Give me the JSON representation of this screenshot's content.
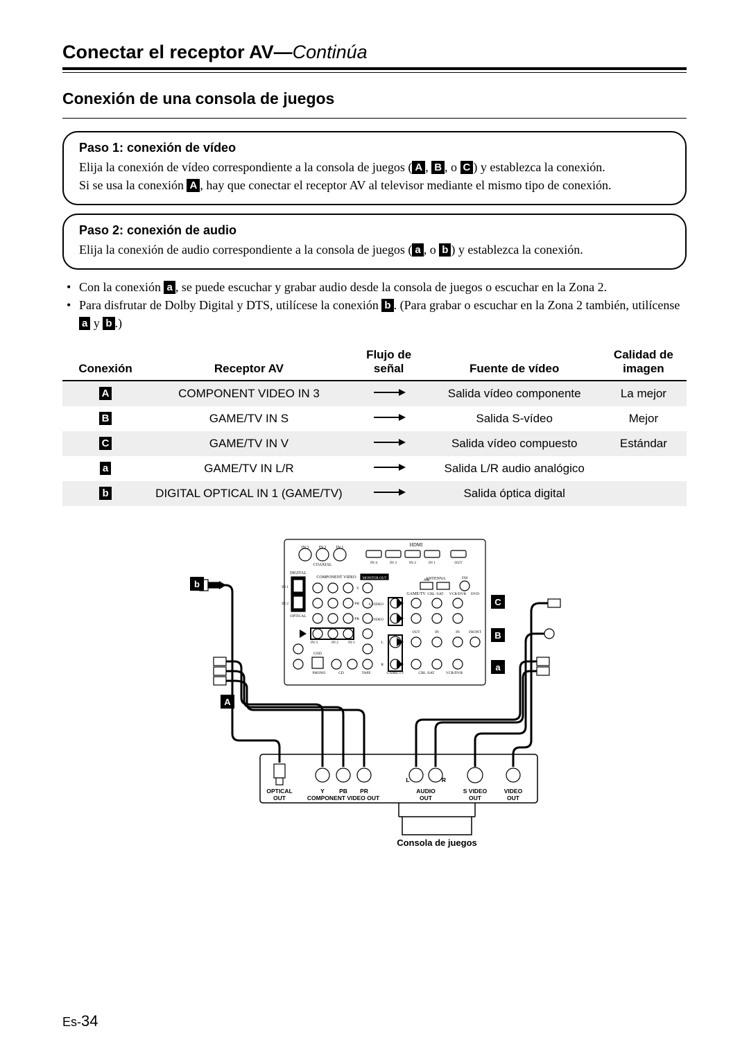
{
  "header": {
    "title_main": "Conectar el receptor AV",
    "title_sep": "—",
    "title_cont": "Continúa"
  },
  "section": {
    "title": "Conexión de una consola de juegos"
  },
  "step1": {
    "title": "Paso 1: conexión de vídeo",
    "line1_a": "Elija la conexión de vídeo correspondiente a la consola de juegos (",
    "line1_b": ", ",
    "line1_c": ", o ",
    "line1_d": ") y establezca la conexión.",
    "line2_a": "Si se usa la conexión ",
    "line2_b": ", hay que conectar el receptor AV al televisor mediante el mismo tipo de conexión.",
    "badges": {
      "A": "A",
      "B": "B",
      "C": "C"
    }
  },
  "step2": {
    "title": "Paso 2: conexión de audio",
    "line1_a": "Elija la conexión de audio correspondiente a la consola de juegos (",
    "line1_b": ", o ",
    "line1_c": ") y establezca la conexión.",
    "badges": {
      "a": "a",
      "b": "b"
    }
  },
  "bullets": {
    "b1_a": "Con la conexión ",
    "b1_b": ", se puede escuchar y grabar audio desde la consola de juegos o escuchar en la Zona 2.",
    "b2_a": "Para disfrutar de Dolby Digital y DTS, utilícese la conexión ",
    "b2_b": ". (Para grabar o escuchar en la Zona 2 también, utilícense ",
    "b2_c": " y ",
    "b2_d": ".)",
    "badges": {
      "a": "a",
      "b": "b"
    }
  },
  "table": {
    "headers": {
      "conn": "Conexión",
      "recv": "Receptor AV",
      "flow_l1": "Flujo de",
      "flow_l2": "señal",
      "src": "Fuente de vídeo",
      "qual_l1": "Calidad de",
      "qual_l2": "imagen"
    },
    "rows": [
      {
        "badge": "A",
        "shade": true,
        "recv": "COMPONENT VIDEO IN 3",
        "src": "Salida vídeo componente",
        "qual": "La mejor"
      },
      {
        "badge": "B",
        "shade": false,
        "recv": "GAME/TV IN S",
        "src": "Salida S-vídeo",
        "qual": "Mejor"
      },
      {
        "badge": "C",
        "shade": true,
        "recv": "GAME/TV IN V",
        "src": "Salida vídeo compuesto",
        "qual": "Estándar"
      },
      {
        "badge": "a",
        "shade": false,
        "recv": "GAME/TV IN L/R",
        "src": "Salida L/R audio analógico",
        "qual": ""
      },
      {
        "badge": "b",
        "shade": true,
        "recv": "DIGITAL OPTICAL IN 1 (GAME/TV)",
        "src": "Salida óptica digital",
        "qual": ""
      }
    ]
  },
  "diagram": {
    "badges": {
      "A": "A",
      "B": "B",
      "C": "C",
      "a": "a",
      "b": "b"
    },
    "labels": {
      "optical_out_l1": "OPTICAL",
      "optical_out_l2": "OUT",
      "comp_out": "COMPONENT VIDEO OUT",
      "y": "Y",
      "pb": "PB",
      "pr": "PR",
      "audio_out_l1": "AUDIO",
      "audio_out_l2": "OUT",
      "L": "L",
      "R": "R",
      "svideo_out_l1": "S VIDEO",
      "svideo_out_l2": "OUT",
      "video_out_l1": "VIDEO",
      "video_out_l2": "OUT",
      "console": "Consola de juegos"
    },
    "panel_text": {
      "hdmi": "HDMI",
      "in1": "IN 1",
      "in2": "IN 2",
      "in3": "IN 3",
      "in4": "IN 4",
      "out": "OUT",
      "digital": "DIGITAL",
      "optical": "OPTICAL",
      "coaxial": "COAXIAL",
      "component_video": "COMPONENT VIDEO",
      "monitor_out": "MONITOR OUT",
      "antenna": "ANTENNA",
      "am": "AM",
      "fm": "FM",
      "cbl_sat": "CBL /SAT",
      "vcr_dvr": "VCR/DVR",
      "dvd": "DVD",
      "game_tv": "GAME/TV",
      "in": "IN",
      "front": "FRONT",
      "svideo": "S VIDEO",
      "video": "VIDEO",
      "phono": "PHONO",
      "gnd": "GND",
      "cd": "CD",
      "tape": "TAPE",
      "lr_L": "L",
      "lr_R": "R",
      "y": "Y",
      "pb": "PB",
      "pr": "PR"
    },
    "colors": {
      "bg": "#ffffff",
      "line": "#000000",
      "panel_stroke": "#000000",
      "panel_fill": "#ffffff"
    }
  },
  "page_number": {
    "prefix": "Es-",
    "num": "34"
  }
}
